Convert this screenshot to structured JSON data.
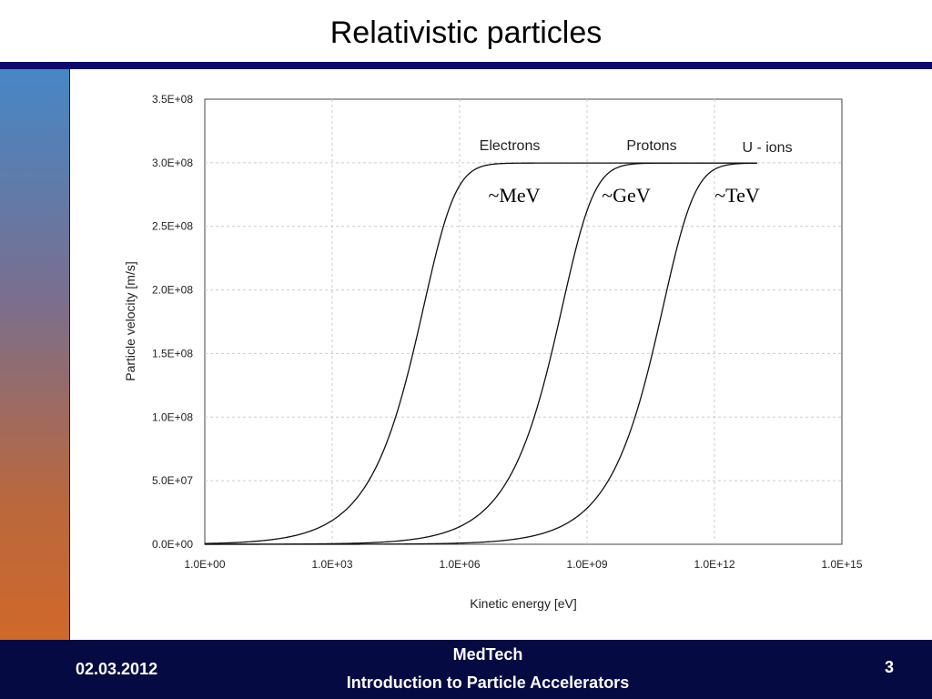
{
  "slide": {
    "title": "Relativistic particles"
  },
  "footer": {
    "date": "02.03.2012",
    "line1": "MedTech",
    "line2": "Introduction to Particle Accelerators",
    "page": "3"
  },
  "colors": {
    "title_bar": "#0b0b6b",
    "footer_bg": "#060a42",
    "curve": "#111111",
    "grid": "#cccccc"
  },
  "chart_data": {
    "type": "line",
    "title": "",
    "xlabel": "Kinetic energy [eV]",
    "ylabel": "Particle velocity [m/s]",
    "x_scale": "log",
    "xlim": [
      1,
      1000000000000000.0
    ],
    "ylim": [
      0,
      350000000
    ],
    "x_ticks": [
      "1.0E+00",
      "1.0E+03",
      "1.0E+06",
      "1.0E+09",
      "1.0E+12",
      "1.0E+15"
    ],
    "y_ticks": [
      "0.0E+00",
      "5.0E+07",
      "1.0E+08",
      "1.5E+08",
      "2.0E+08",
      "2.5E+08",
      "3.0E+08",
      "3.5E+08"
    ],
    "grid": true,
    "legend": "none",
    "series": [
      {
        "name": "Electrons",
        "rest_energy_eV": 511000,
        "x_max": 10000000000000.0
      },
      {
        "name": "Protons",
        "rest_energy_eV": 938000000,
        "x_max": 10000000000000.0
      },
      {
        "name": "U - ions",
        "rest_energy_eV": 221700000000,
        "x_max": 10000000000000.0
      }
    ],
    "annotations": [
      "~MeV",
      "~GeV",
      "~TeV"
    ]
  }
}
